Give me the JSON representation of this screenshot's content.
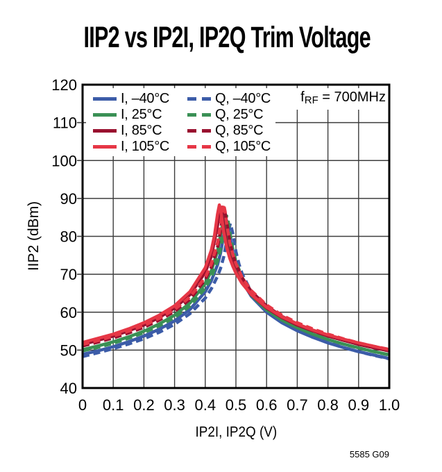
{
  "title": "IIP2 vs IP2I, IP2Q Trim Voltage",
  "annotation": {
    "prefix": "f",
    "sub": "RF",
    "suffix": " = 700MHz"
  },
  "footer": "5585 G09",
  "chart_data": {
    "type": "line",
    "title": "IIP2 vs IP2I, IP2Q Trim Voltage",
    "xlabel": "IP2I, IP2Q (V)",
    "ylabel": "IIP2 (dBm)",
    "xlim": [
      0,
      1.0
    ],
    "ylim": [
      40,
      120
    ],
    "x_ticks": [
      0,
      0.1,
      0.2,
      0.3,
      0.4,
      0.5,
      0.6,
      0.7,
      0.8,
      0.9,
      1.0
    ],
    "x_tick_labels": [
      "0",
      "0.1",
      "0.2",
      "0.3",
      "0.4",
      "0.5",
      "0.6",
      "0.7",
      "0.8",
      "0.9",
      "1.0"
    ],
    "y_ticks": [
      40,
      50,
      60,
      70,
      80,
      90,
      100,
      110,
      120
    ],
    "y_tick_labels": [
      "40",
      "50",
      "60",
      "70",
      "80",
      "90",
      "100",
      "110",
      "120"
    ],
    "grid": true,
    "grid_color": "#3d3d3d",
    "axis_color": "#000000",
    "legend_position": "top-left-inside",
    "annotation_text": "fRF = 700MHz",
    "series": [
      {
        "id": "i-minus40c",
        "label": "I, –40°C",
        "channel": "I",
        "temperature": "–40°C",
        "style": "solid",
        "color": "#3C5CA8",
        "x": [
          0,
          0.05,
          0.1,
          0.15,
          0.2,
          0.25,
          0.3,
          0.35,
          0.4,
          0.42,
          0.44,
          0.45,
          0.46,
          0.47,
          0.48,
          0.49,
          0.5,
          0.52,
          0.55,
          0.6,
          0.65,
          0.7,
          0.75,
          0.8,
          0.85,
          0.9,
          0.95,
          1.0
        ],
        "y": [
          48.9,
          49.8,
          50.9,
          52.2,
          53.7,
          55.5,
          57.7,
          60.7,
          65.4,
          68.3,
          72.5,
          75.6,
          80.2,
          84.2,
          80.2,
          75.6,
          72.5,
          68.2,
          64.2,
          60.0,
          57.2,
          55.1,
          53.4,
          51.9,
          50.7,
          49.6,
          48.7,
          47.8
        ]
      },
      {
        "id": "i-25c",
        "label": "I, 25°C",
        "channel": "I",
        "temperature": "25°C",
        "style": "solid",
        "color": "#3A9055",
        "x": [
          0,
          0.05,
          0.1,
          0.15,
          0.2,
          0.25,
          0.3,
          0.35,
          0.4,
          0.42,
          0.44,
          0.45,
          0.462,
          0.47,
          0.48,
          0.49,
          0.5,
          0.52,
          0.55,
          0.6,
          0.65,
          0.7,
          0.75,
          0.8,
          0.85,
          0.9,
          0.95,
          1.0
        ],
        "y": [
          50.1,
          51.1,
          52.2,
          53.5,
          55.0,
          56.9,
          59.2,
          62.4,
          67.6,
          70.9,
          76.1,
          80.4,
          85.9,
          82.6,
          77.6,
          74.2,
          71.6,
          68.1,
          64.5,
          60.6,
          57.9,
          55.9,
          54.2,
          52.8,
          51.6,
          50.6,
          49.6,
          48.8
        ]
      },
      {
        "id": "i-85c",
        "label": "I, 85°C",
        "channel": "I",
        "temperature": "85°C",
        "style": "solid",
        "color": "#99102F",
        "x": [
          0,
          0.05,
          0.1,
          0.15,
          0.2,
          0.25,
          0.3,
          0.35,
          0.4,
          0.42,
          0.44,
          0.445,
          0.45,
          0.455,
          0.46,
          0.47,
          0.48,
          0.49,
          0.5,
          0.52,
          0.55,
          0.6,
          0.65,
          0.7,
          0.75,
          0.8,
          0.85,
          0.9,
          0.95,
          1.0
        ],
        "y": [
          51.5,
          52.6,
          53.7,
          55.1,
          56.6,
          58.6,
          61.1,
          64.6,
          70.5,
          74.8,
          82.9,
          85.9,
          87.7,
          85.9,
          82.9,
          78.1,
          74.8,
          72.6,
          70.5,
          67.7,
          64.6,
          61.1,
          58.6,
          56.6,
          55.1,
          53.7,
          52.6,
          51.5,
          50.6,
          49.8
        ]
      },
      {
        "id": "i-105c",
        "label": "I, 105°C",
        "channel": "I",
        "temperature": "105°C",
        "style": "solid",
        "color": "#E63746",
        "x": [
          0,
          0.05,
          0.1,
          0.15,
          0.2,
          0.25,
          0.3,
          0.35,
          0.4,
          0.42,
          0.43,
          0.44,
          0.446,
          0.45,
          0.46,
          0.47,
          0.48,
          0.49,
          0.5,
          0.52,
          0.55,
          0.6,
          0.65,
          0.7,
          0.75,
          0.8,
          0.85,
          0.9,
          0.95,
          1.0
        ],
        "y": [
          52.0,
          53.1,
          54.2,
          55.6,
          57.2,
          59.2,
          61.7,
          65.4,
          71.7,
          76.4,
          80.2,
          85.9,
          88.3,
          87.1,
          81.2,
          77.1,
          74.2,
          72.1,
          70.3,
          67.6,
          64.7,
          61.3,
          58.8,
          56.9,
          55.3,
          54.0,
          52.9,
          51.9,
          51.0,
          50.1
        ]
      },
      {
        "id": "q-minus40c",
        "label": "Q, –40°C",
        "channel": "Q",
        "temperature": "–40°C",
        "style": "dashed",
        "color": "#3C5CA8",
        "x": [
          0,
          0.05,
          0.1,
          0.15,
          0.2,
          0.25,
          0.3,
          0.35,
          0.4,
          0.42,
          0.44,
          0.45,
          0.46,
          0.47,
          0.475,
          0.482,
          0.49,
          0.5,
          0.51,
          0.52,
          0.55,
          0.6,
          0.65,
          0.7,
          0.75,
          0.8,
          0.85,
          0.9,
          0.95,
          1.0
        ],
        "y": [
          48.3,
          49.3,
          50.4,
          51.6,
          53.0,
          54.7,
          56.8,
          59.6,
          63.7,
          66.2,
          69.5,
          71.6,
          74.5,
          78.7,
          81.2,
          83.4,
          80.7,
          76.0,
          72.7,
          70.2,
          65.4,
          60.6,
          57.5,
          55.2,
          53.4,
          52.0,
          50.7,
          49.6,
          48.6,
          47.7
        ]
      },
      {
        "id": "q-25c",
        "label": "Q, 25°C",
        "channel": "Q",
        "temperature": "25°C",
        "style": "dashed",
        "color": "#3A9055",
        "x": [
          0,
          0.05,
          0.1,
          0.15,
          0.2,
          0.25,
          0.3,
          0.35,
          0.4,
          0.42,
          0.44,
          0.45,
          0.46,
          0.465,
          0.47,
          0.475,
          0.48,
          0.49,
          0.5,
          0.52,
          0.55,
          0.6,
          0.65,
          0.7,
          0.75,
          0.8,
          0.85,
          0.9,
          0.95,
          1.0
        ],
        "y": [
          49.8,
          50.7,
          51.8,
          53.1,
          54.6,
          56.4,
          58.6,
          61.6,
          66.3,
          69.2,
          73.4,
          76.6,
          81.1,
          83.9,
          85.4,
          83.9,
          81.1,
          76.6,
          73.4,
          69.2,
          65.1,
          60.9,
          58.1,
          56.0,
          54.3,
          52.8,
          51.6,
          50.5,
          49.6,
          48.7
        ]
      },
      {
        "id": "q-85c",
        "label": "Q, 85°C",
        "channel": "Q",
        "temperature": "85°C",
        "style": "dashed",
        "color": "#99102F",
        "x": [
          0,
          0.05,
          0.1,
          0.15,
          0.2,
          0.25,
          0.3,
          0.35,
          0.4,
          0.42,
          0.44,
          0.45,
          0.455,
          0.462,
          0.47,
          0.48,
          0.49,
          0.5,
          0.52,
          0.55,
          0.6,
          0.65,
          0.7,
          0.75,
          0.8,
          0.85,
          0.9,
          0.95,
          1.0
        ],
        "y": [
          51.1,
          52.1,
          53.2,
          54.5,
          56.0,
          57.9,
          60.2,
          63.4,
          68.6,
          71.9,
          77.1,
          81.6,
          84.5,
          87.5,
          83.9,
          78.7,
          75.2,
          72.7,
          69.1,
          65.5,
          61.6,
          58.9,
          56.9,
          55.2,
          53.8,
          52.6,
          51.6,
          50.6,
          49.8
        ]
      },
      {
        "id": "q-105c",
        "label": "Q, 105°C",
        "channel": "Q",
        "temperature": "105°C",
        "style": "dashed",
        "color": "#E63746",
        "x": [
          0,
          0.05,
          0.1,
          0.15,
          0.2,
          0.25,
          0.3,
          0.35,
          0.4,
          0.42,
          0.44,
          0.45,
          0.455,
          0.46,
          0.465,
          0.47,
          0.48,
          0.49,
          0.5,
          0.52,
          0.55,
          0.6,
          0.65,
          0.7,
          0.75,
          0.8,
          0.85,
          0.9,
          0.95,
          1.0
        ],
        "y": [
          51.5,
          52.5,
          53.7,
          55.0,
          56.5,
          58.4,
          60.7,
          64.0,
          69.2,
          72.8,
          78.3,
          83.3,
          86.5,
          88.5,
          86.5,
          83.3,
          78.3,
          75.2,
          72.8,
          69.2,
          65.7,
          61.9,
          59.2,
          57.2,
          55.6,
          54.2,
          53.0,
          51.9,
          51.0,
          50.2
        ]
      }
    ]
  }
}
